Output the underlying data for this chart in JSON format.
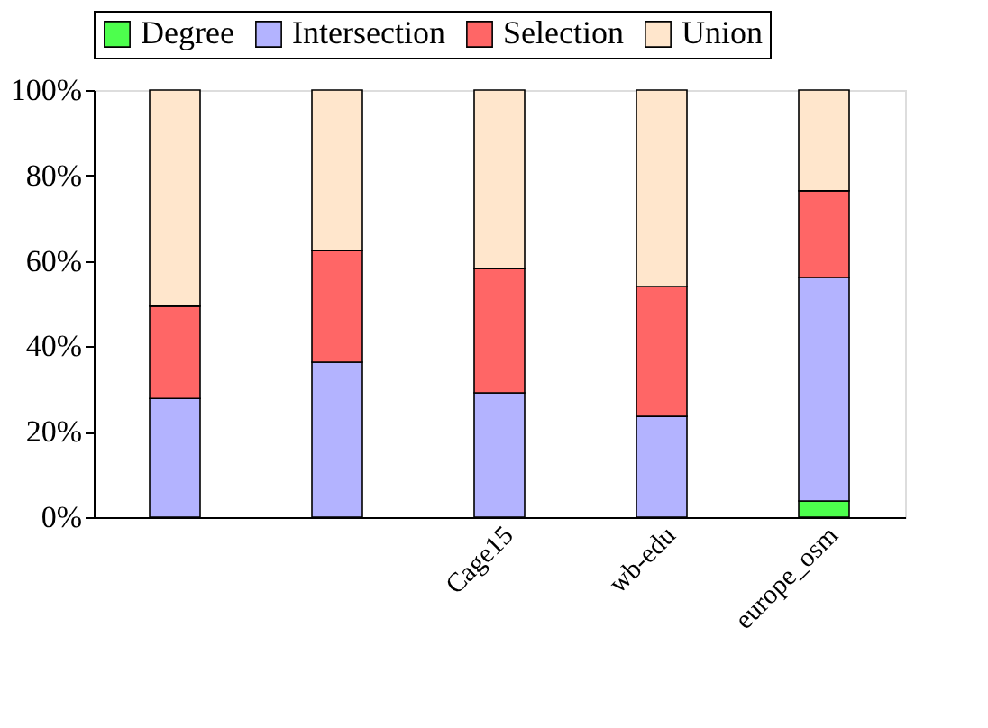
{
  "chart_data": {
    "type": "bar",
    "stacked": true,
    "categories": [
      null,
      null,
      "Cage15",
      "wb-edu",
      "europe_osm"
    ],
    "series": [
      {
        "name": "Degree",
        "color": "#4dff4d",
        "values": [
          null,
          null,
          null,
          null,
          3.8
        ]
      },
      {
        "name": "Intersection",
        "color": "#b3b3ff",
        "values": [
          27.8,
          36.3,
          29.1,
          23.6,
          52.3
        ]
      },
      {
        "name": "Selection",
        "color": "#ff6666",
        "values": [
          21.6,
          26.1,
          29.1,
          30.4,
          20.3
        ]
      },
      {
        "name": "Union",
        "color": "#ffe6cc",
        "values": [
          50.6,
          37.6,
          41.8,
          46.0,
          23.6
        ]
      }
    ],
    "ylim": [
      0,
      100
    ],
    "yticks": [
      {
        "value": 0,
        "label": "0%"
      },
      {
        "value": 20,
        "label": "20%"
      },
      {
        "value": 40,
        "label": "40%"
      },
      {
        "value": 60,
        "label": "60%"
      },
      {
        "value": 80,
        "label": "80%"
      },
      {
        "value": 100,
        "label": "100%"
      }
    ],
    "legend": "top",
    "grid": false
  }
}
